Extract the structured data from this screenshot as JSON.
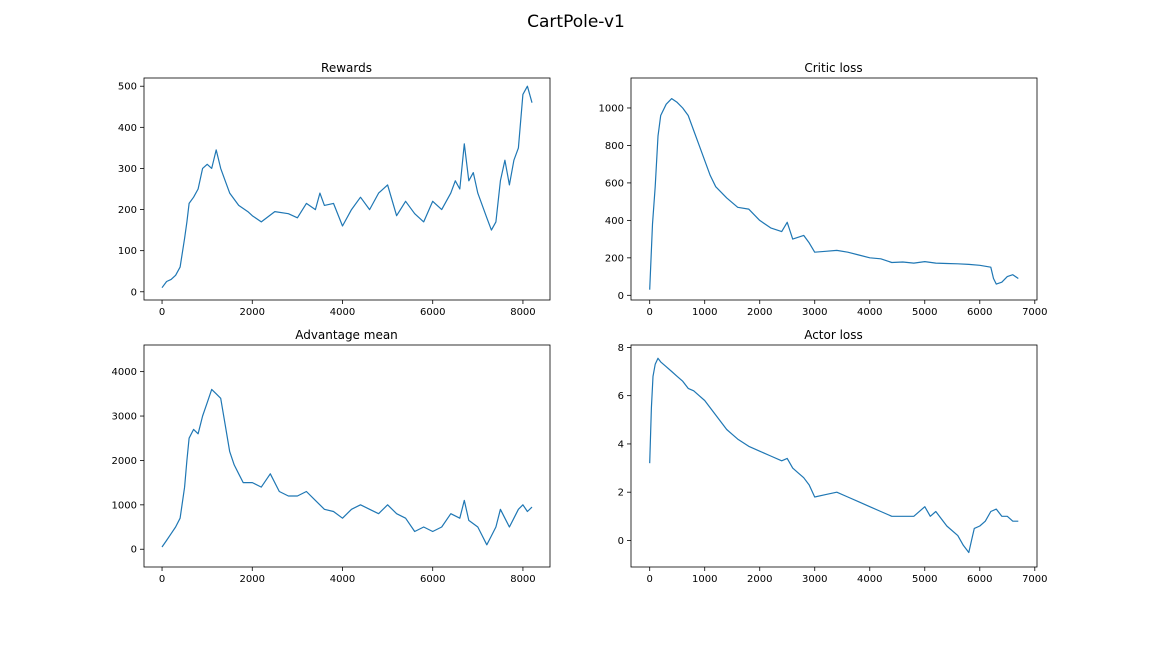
{
  "figure_title": "CartPole-v1",
  "series_color": "#1f77b4",
  "chart_data": [
    {
      "type": "line",
      "title": "Rewards",
      "xlabel": "",
      "ylabel": "",
      "xlim": [
        -400,
        8600
      ],
      "ylim": [
        -20,
        520
      ],
      "xticks": [
        0,
        2000,
        4000,
        6000,
        8000
      ],
      "yticks": [
        0,
        100,
        200,
        300,
        400,
        500
      ],
      "grid": false,
      "series": [
        {
          "x": [
            0,
            100,
            200,
            300,
            400,
            500,
            550,
            600,
            700,
            800,
            900,
            1000,
            1100,
            1200,
            1300,
            1400,
            1500,
            1700,
            1900,
            2000,
            2200,
            2500,
            2800,
            3000,
            3200,
            3400,
            3500,
            3600,
            3800,
            4000,
            4200,
            4400,
            4600,
            4800,
            5000,
            5200,
            5400,
            5600,
            5800,
            6000,
            6200,
            6400,
            6500,
            6600,
            6700,
            6800,
            6900,
            7000,
            7200,
            7300,
            7400,
            7500,
            7600,
            7700,
            7800,
            7900,
            8000,
            8100,
            8200
          ],
          "y": [
            10,
            25,
            30,
            40,
            60,
            130,
            170,
            215,
            230,
            250,
            300,
            310,
            300,
            345,
            300,
            270,
            240,
            210,
            195,
            185,
            170,
            195,
            190,
            180,
            215,
            200,
            240,
            210,
            215,
            160,
            200,
            230,
            200,
            240,
            260,
            185,
            220,
            190,
            170,
            220,
            200,
            240,
            270,
            250,
            360,
            270,
            290,
            240,
            180,
            150,
            170,
            270,
            320,
            260,
            320,
            350,
            480,
            500,
            460
          ]
        }
      ]
    },
    {
      "type": "line",
      "title": "Critic loss",
      "xlabel": "",
      "ylabel": "",
      "xlim": [
        -340,
        7040
      ],
      "ylim": [
        -25,
        1160
      ],
      "xticks": [
        0,
        1000,
        2000,
        3000,
        4000,
        5000,
        6000,
        7000
      ],
      "yticks": [
        0,
        200,
        400,
        600,
        800,
        1000
      ],
      "grid": false,
      "series": [
        {
          "x": [
            0,
            50,
            100,
            150,
            200,
            300,
            400,
            500,
            600,
            700,
            800,
            900,
            1000,
            1100,
            1200,
            1400,
            1600,
            1800,
            2000,
            2200,
            2400,
            2500,
            2600,
            2800,
            2900,
            3000,
            3200,
            3400,
            3600,
            3800,
            4000,
            4200,
            4400,
            4600,
            4800,
            5000,
            5200,
            5400,
            5600,
            5800,
            6000,
            6200,
            6250,
            6300,
            6400,
            6500,
            6600,
            6700
          ],
          "y": [
            30,
            380,
            580,
            850,
            960,
            1020,
            1050,
            1030,
            1000,
            960,
            880,
            800,
            720,
            640,
            580,
            520,
            470,
            460,
            400,
            360,
            340,
            390,
            300,
            320,
            280,
            230,
            235,
            240,
            230,
            215,
            200,
            195,
            175,
            178,
            172,
            180,
            172,
            170,
            168,
            165,
            160,
            150,
            90,
            60,
            70,
            100,
            110,
            90
          ]
        }
      ]
    },
    {
      "type": "line",
      "title": "Advantage mean",
      "xlabel": "",
      "ylabel": "",
      "xlim": [
        -400,
        8600
      ],
      "ylim": [
        -400,
        4600
      ],
      "xticks": [
        0,
        2000,
        4000,
        6000,
        8000
      ],
      "yticks": [
        0,
        1000,
        2000,
        3000,
        4000
      ],
      "grid": false,
      "series": [
        {
          "x": [
            0,
            100,
            200,
            300,
            400,
            500,
            550,
            600,
            700,
            800,
            900,
            1000,
            1100,
            1200,
            1300,
            1400,
            1500,
            1600,
            1700,
            1800,
            2000,
            2200,
            2400,
            2600,
            2800,
            3000,
            3200,
            3400,
            3600,
            3800,
            4000,
            4200,
            4400,
            4600,
            4800,
            5000,
            5200,
            5400,
            5600,
            5800,
            6000,
            6200,
            6400,
            6600,
            6700,
            6800,
            7000,
            7100,
            7200,
            7300,
            7400,
            7500,
            7600,
            7700,
            7800,
            7900,
            8000,
            8100,
            8200
          ],
          "y": [
            50,
            200,
            350,
            500,
            700,
            1400,
            2000,
            2500,
            2700,
            2600,
            3000,
            3300,
            3600,
            3500,
            3400,
            2800,
            2200,
            1900,
            1700,
            1500,
            1500,
            1400,
            1700,
            1300,
            1200,
            1200,
            1300,
            1100,
            900,
            850,
            700,
            900,
            1000,
            900,
            800,
            1000,
            800,
            700,
            400,
            500,
            400,
            500,
            800,
            700,
            1100,
            650,
            500,
            300,
            100,
            300,
            500,
            900,
            700,
            500,
            700,
            900,
            1000,
            850,
            950
          ]
        }
      ]
    },
    {
      "type": "line",
      "title": "Actor loss",
      "xlabel": "",
      "ylabel": "",
      "xlim": [
        -340,
        7040
      ],
      "ylim": [
        -1.1,
        8.1
      ],
      "xticks": [
        0,
        1000,
        2000,
        3000,
        4000,
        5000,
        6000,
        7000
      ],
      "yticks": [
        0,
        2,
        4,
        6,
        8
      ],
      "grid": false,
      "series": [
        {
          "x": [
            0,
            30,
            60,
            100,
            150,
            200,
            300,
            400,
            500,
            600,
            700,
            800,
            900,
            1000,
            1100,
            1200,
            1300,
            1400,
            1500,
            1600,
            1800,
            2000,
            2200,
            2400,
            2500,
            2600,
            2700,
            2800,
            2900,
            3000,
            3200,
            3400,
            3600,
            3800,
            4000,
            4200,
            4400,
            4600,
            4800,
            5000,
            5100,
            5200,
            5400,
            5600,
            5700,
            5800,
            5850,
            5900,
            6000,
            6100,
            6200,
            6300,
            6400,
            6500,
            6600,
            6700
          ],
          "y": [
            3.2,
            5.5,
            6.8,
            7.3,
            7.55,
            7.4,
            7.2,
            7.0,
            6.8,
            6.6,
            6.3,
            6.2,
            6.0,
            5.8,
            5.5,
            5.2,
            4.9,
            4.6,
            4.4,
            4.2,
            3.9,
            3.7,
            3.5,
            3.3,
            3.4,
            3.0,
            2.8,
            2.6,
            2.3,
            1.8,
            1.9,
            2.0,
            1.8,
            1.6,
            1.4,
            1.2,
            1.0,
            1.0,
            1.0,
            1.4,
            1.0,
            1.2,
            0.6,
            0.2,
            -0.2,
            -0.5,
            0.0,
            0.5,
            0.6,
            0.8,
            1.2,
            1.3,
            1.0,
            1.0,
            0.8,
            0.8
          ]
        }
      ]
    }
  ]
}
